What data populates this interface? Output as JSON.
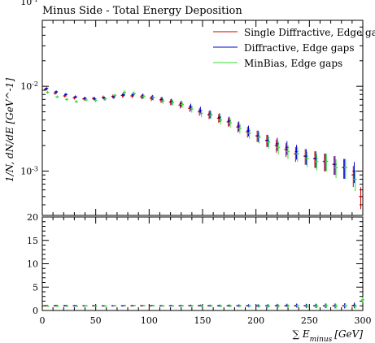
{
  "chart_data": [
    {
      "type": "scatter",
      "title": "Minus Side - Total Energy Deposition",
      "ylabel": "1/N, dN/dE [GeV^-1]",
      "yscale": "log",
      "xlim": [
        0,
        300
      ],
      "ylim": [
        0.0003,
        0.06
      ],
      "y_ticks": [
        {
          "value": 0.001,
          "label": "10",
          "exp": "-3"
        },
        {
          "value": 0.01,
          "label": "10",
          "exp": "-2"
        },
        {
          "value": 0.1,
          "label": "10",
          "exp": "-1"
        }
      ],
      "legend_position": "top-right",
      "series": [
        {
          "name": "Single Diffractive, Edge gaps",
          "color": "#cc0000",
          "x": [
            4,
            13,
            22,
            31,
            40,
            49,
            58,
            67,
            76,
            85,
            94,
            103,
            112,
            121,
            130,
            139,
            148,
            157,
            166,
            175,
            184,
            193,
            202,
            211,
            220,
            229,
            238,
            247,
            256,
            265,
            274,
            283,
            292,
            299
          ],
          "y": [
            0.0092,
            0.0083,
            0.0077,
            0.0073,
            0.0071,
            0.0072,
            0.0074,
            0.0076,
            0.0078,
            0.0077,
            0.0075,
            0.0072,
            0.0069,
            0.0065,
            0.006,
            0.0055,
            0.005,
            0.0046,
            0.0042,
            0.0038,
            0.0033,
            0.0029,
            0.0026,
            0.0023,
            0.002,
            0.0018,
            0.0016,
            0.0015,
            0.0014,
            0.0013,
            0.0012,
            0.0011,
            0.0009,
            0.0005
          ]
        },
        {
          "name": "Diffractive, Edge gaps",
          "color": "#0000cc",
          "x": [
            4,
            13,
            22,
            31,
            40,
            49,
            58,
            67,
            76,
            85,
            94,
            103,
            112,
            121,
            130,
            139,
            148,
            157,
            166,
            175,
            184,
            193,
            202,
            211,
            220,
            229,
            238,
            247,
            256,
            265,
            274,
            283,
            292
          ],
          "y": [
            0.0094,
            0.0086,
            0.008,
            0.0075,
            0.0072,
            0.0071,
            0.0072,
            0.0075,
            0.0079,
            0.008,
            0.0077,
            0.0074,
            0.007,
            0.0066,
            0.0062,
            0.0057,
            0.0052,
            0.0047,
            0.0043,
            0.0039,
            0.0034,
            0.003,
            0.0026,
            0.0023,
            0.0021,
            0.0019,
            0.0017,
            0.0015,
            0.0014,
            0.0013,
            0.0012,
            0.0011,
            0.001
          ]
        },
        {
          "name": "MinBias, Edge gaps",
          "color": "#33dd33",
          "x": [
            4,
            13,
            22,
            31,
            40,
            49,
            58,
            67,
            76,
            85,
            94,
            103,
            112,
            121,
            130,
            139,
            148,
            157,
            166,
            175,
            184,
            193,
            202,
            211,
            220,
            229,
            238,
            247,
            256,
            265,
            274,
            283,
            292
          ],
          "y": [
            0.0085,
            0.0075,
            0.007,
            0.0066,
            0.0069,
            0.0068,
            0.0071,
            0.0078,
            0.0085,
            0.0082,
            0.0076,
            0.0073,
            0.0067,
            0.0064,
            0.0061,
            0.0054,
            0.0048,
            0.0046,
            0.004,
            0.0037,
            0.0032,
            0.0028,
            0.0025,
            0.0022,
            0.0019,
            0.0017,
            0.0016,
            0.0014,
            0.0013,
            0.0013,
            0.0011,
            0.0011,
            0.0008
          ]
        }
      ]
    },
    {
      "type": "line",
      "xlabel": "∑ E",
      "xlabel_sub": "minus",
      "xlabel_unit": "[GeV]",
      "xlim": [
        0,
        300
      ],
      "ylim": [
        0,
        20
      ],
      "x_ticks": [
        0,
        50,
        100,
        150,
        200,
        250,
        300
      ],
      "y_ticks": [
        0,
        5,
        10,
        15,
        20
      ],
      "series": [
        {
          "color": "#cc0000",
          "x": [
            4,
            13,
            22,
            31,
            40,
            49,
            58,
            67,
            76,
            85,
            94,
            103,
            112,
            121,
            130,
            139,
            148,
            157,
            166,
            175,
            184,
            193,
            202,
            211,
            220,
            229,
            238,
            247,
            256,
            265,
            274,
            283,
            292
          ],
          "y": [
            1,
            1,
            1,
            1,
            1,
            1,
            1,
            1,
            1,
            1,
            1,
            1,
            1,
            1,
            1,
            1,
            1,
            1,
            1,
            1,
            1,
            1,
            1,
            1,
            1,
            1,
            1,
            1,
            1,
            1,
            1,
            1,
            1
          ]
        },
        {
          "color": "#0000cc",
          "x": [
            4,
            13,
            22,
            31,
            40,
            49,
            58,
            67,
            76,
            85,
            94,
            103,
            112,
            121,
            130,
            139,
            148,
            157,
            166,
            175,
            184,
            193,
            202,
            211,
            220,
            229,
            238,
            247,
            256,
            265,
            274,
            283,
            292
          ],
          "y": [
            1.02,
            1.04,
            1.04,
            1.03,
            1.01,
            0.99,
            0.97,
            0.99,
            1.01,
            1.04,
            1.03,
            1.03,
            1.01,
            1.02,
            1.03,
            1.04,
            1.04,
            1.02,
            1.02,
            1.03,
            1.03,
            1.03,
            1.0,
            1.0,
            1.05,
            1.06,
            1.06,
            1.0,
            1.0,
            1.0,
            1.0,
            1.0,
            1.11
          ]
        },
        {
          "color": "#33dd33",
          "x": [
            4,
            13,
            22,
            31,
            40,
            49,
            58,
            67,
            76,
            85,
            94,
            103,
            112,
            121,
            130,
            139,
            148,
            157,
            166,
            175,
            184,
            193,
            202,
            211,
            220,
            229,
            238,
            247,
            256,
            265,
            274,
            283,
            292,
            299
          ],
          "y": [
            0.92,
            0.9,
            0.91,
            0.9,
            0.97,
            0.94,
            0.96,
            1.03,
            1.09,
            1.06,
            1.01,
            1.01,
            0.97,
            0.98,
            1.02,
            0.98,
            0.96,
            1.0,
            0.95,
            0.97,
            0.97,
            0.97,
            0.96,
            0.96,
            0.95,
            0.94,
            1.0,
            0.93,
            0.93,
            1.0,
            0.92,
            1.0,
            0.89,
            2.3
          ]
        }
      ]
    }
  ]
}
